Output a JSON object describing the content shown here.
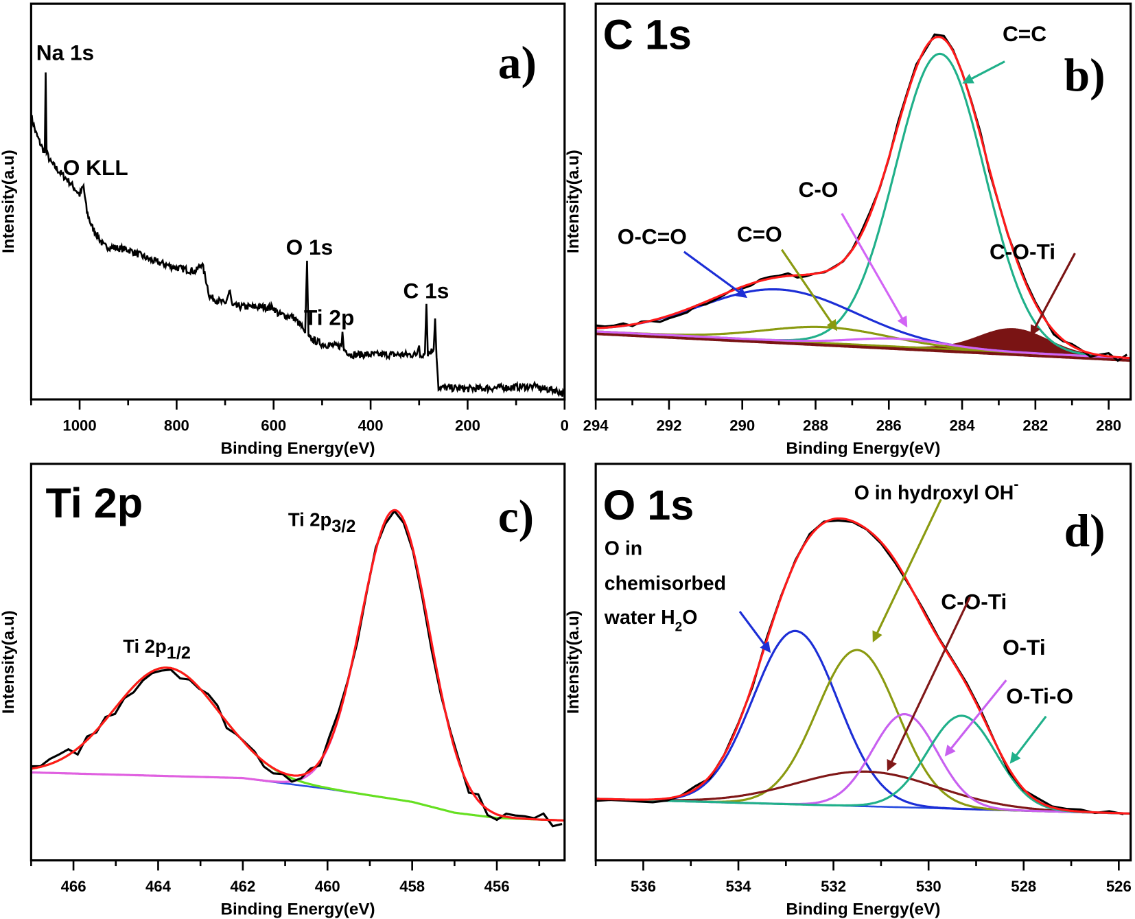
{
  "chart_data": {
    "type": "line",
    "panels": [
      {
        "letter": "a)",
        "title": "",
        "xlabel": "Binding Energy(eV)",
        "ylabel": "Intensity(a.u)",
        "xlim": [
          1100,
          0
        ],
        "ylim": [
          -0.7,
          100
        ],
        "xticks": [
          "1000",
          "800",
          "600",
          "400",
          "200",
          "0"
        ],
        "minor_step": 100,
        "grid": false,
        "experimental": {
          "color": "#000000",
          "points": [
            [
              1100,
              71.5
            ],
            [
              1090,
              67
            ],
            [
              1080,
              64.1
            ],
            [
              1072,
              62
            ],
            [
              1070,
              82.5
            ],
            [
              1068,
              62
            ],
            [
              1060,
              59.7
            ],
            [
              1040,
              57
            ],
            [
              1020,
              54.5
            ],
            [
              1000,
              51.4
            ],
            [
              992,
              53.5
            ],
            [
              985,
              47
            ],
            [
              975,
              43.3
            ],
            [
              950,
              38.3
            ],
            [
              900,
              37.4
            ],
            [
              850,
              34.6
            ],
            [
              800,
              32.8
            ],
            [
              760,
              31.9
            ],
            [
              748,
              34
            ],
            [
              738,
              29
            ],
            [
              732,
              25.4
            ],
            [
              700,
              23.6
            ],
            [
              690,
              27
            ],
            [
              685,
              23
            ],
            [
              600,
              22.7
            ],
            [
              590,
              21
            ],
            [
              560,
              20.3
            ],
            [
              540,
              17.5
            ],
            [
              535,
              16.2
            ],
            [
              531,
              34.6
            ],
            [
              528,
              15
            ],
            [
              500,
              13.4
            ],
            [
              470,
              12.8
            ],
            [
              460,
              13
            ],
            [
              458,
              16.5
            ],
            [
              455,
              12
            ],
            [
              440,
              10.7
            ],
            [
              305,
              10.7
            ],
            [
              300,
              13
            ],
            [
              298,
              10.5
            ],
            [
              288,
              11
            ],
            [
              285,
              23.6
            ],
            [
              282,
              11
            ],
            [
              270,
              12
            ],
            [
              267,
              19.9
            ],
            [
              264,
              10
            ],
            [
              260,
              2.4
            ],
            [
              200,
              2
            ],
            [
              65,
              2.6
            ],
            [
              62,
              3.5
            ],
            [
              58,
              2.2
            ],
            [
              20,
              1.7
            ],
            [
              0,
              0.6
            ]
          ]
        },
        "annotations": [
          "Na 1s",
          "O KLL",
          "O 1s",
          "Ti 2p",
          "C 1s"
        ]
      },
      {
        "letter": "b)",
        "title": "C 1s",
        "xlabel": "Binding Energy(eV)",
        "ylabel": "Intensity(a.u)",
        "xlim": [
          294,
          279.4
        ],
        "ylim": [
          -0.7,
          100
        ],
        "xticks": [
          "294",
          "292",
          "290",
          "288",
          "286",
          "284",
          "282",
          "280"
        ],
        "minor_step": 1,
        "grid": false,
        "experimental": {
          "color": "#000000"
        },
        "envelope": {
          "color": "#ff1a1a"
        },
        "baseline": {
          "color": "#8a9a10",
          "points": [
            [
              294,
              16.6
            ],
            [
              279.4,
              9.8
            ]
          ]
        },
        "components": [
          {
            "label": "C=C",
            "center": 284.6,
            "fwhm": 2.87,
            "height": 75,
            "color": "#20b08a"
          },
          {
            "label": "O-C=O",
            "center": 289.0,
            "fwhm": 5.0,
            "height": 13,
            "color": "#1c2ed6"
          },
          {
            "label": "C=O",
            "center": 287.7,
            "fwhm": 4.0,
            "height": 4,
            "color": "#8a9a10"
          },
          {
            "label": "C-O",
            "center": 285.7,
            "fwhm": 3.0,
            "height": 2,
            "color": "#d264f5"
          },
          {
            "label": "C-O-Ti",
            "center": 282.6,
            "fwhm": 2.2,
            "height": 6,
            "color": "#7a1414",
            "filled": true
          }
        ]
      },
      {
        "letter": "c)",
        "title": "Ti 2p",
        "xlabel": "Binding Energy(eV)",
        "ylabel": "Intensity(a.u)",
        "xlim": [
          467.0,
          454.4
        ],
        "ylim": [
          0,
          91.5
        ],
        "xticks": [
          "466",
          "464",
          "462",
          "460",
          "458",
          "456"
        ],
        "minor_step": 1,
        "grid": false,
        "experimental": {
          "color": "#000000"
        },
        "envelope": {
          "color": "#ff1a1a"
        },
        "baseline": {
          "color": "#2a4ee0",
          "points": [
            [
              467,
              20.3
            ],
            [
              462,
              19
            ],
            [
              460,
              16.5
            ],
            [
              458,
              13.5
            ],
            [
              457,
              11
            ],
            [
              456,
              9.8
            ],
            [
              454.4,
              9.2
            ]
          ]
        },
        "components": [
          {
            "label": {
              "text": "Ti 2p",
              "sub": "3/2"
            },
            "center": 458.4,
            "fwhm": 1.9,
            "height": 66.7,
            "color": "#e060e0"
          },
          {
            "label": {
              "text": "Ti 2p",
              "sub": "1/2"
            },
            "center": 463.8,
            "fwhm": 2.9,
            "height": 25,
            "color": "#66e020"
          }
        ]
      },
      {
        "letter": "d)",
        "title": "O 1s",
        "xlabel": "Binding Energy(eV)",
        "ylabel": "Intensity(a.u)",
        "xlim": [
          537.0,
          525.75
        ],
        "ylim": [
          0,
          91.5
        ],
        "xticks": [
          "536",
          "534",
          "532",
          "530",
          "528",
          "526"
        ],
        "minor_step": 1,
        "grid": false,
        "experimental": {
          "color": "#000000"
        },
        "envelope": {
          "color": "#ff1a1a"
        },
        "baseline": {
          "color": "#2a4ee0",
          "points": [
            [
              537,
              14.2
            ],
            [
              525.75,
              10.8
            ]
          ]
        },
        "components": [
          {
            "label": {
              "lines": [
                "O in",
                "chemisorbed"
              ],
              "text": "water H",
              "sub": "2",
              "after": "O"
            },
            "center": 532.8,
            "fwhm": 2.1,
            "height": 40,
            "color": "#1c2ed6"
          },
          {
            "label": {
              "text": "O in hydroxyl OH",
              "sup": "-"
            },
            "center": 531.5,
            "fwhm": 2.0,
            "height": 36,
            "color": "#8a9a10"
          },
          {
            "label": "C-O-Ti",
            "center": 531.3,
            "fwhm": 3.5,
            "height": 8,
            "color": "#801818"
          },
          {
            "label": "O-Ti",
            "center": 530.5,
            "fwhm": 1.6,
            "height": 21.5,
            "color": "#c860f0"
          },
          {
            "label": "O-Ti-O",
            "center": 529.3,
            "fwhm": 1.7,
            "height": 21.5,
            "color": "#20b08a"
          }
        ]
      }
    ]
  }
}
